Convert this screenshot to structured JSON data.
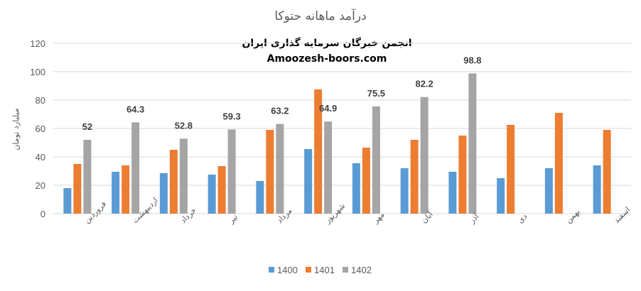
{
  "chart_data": {
    "type": "bar",
    "title": "درآمد ماهانه حتوکا",
    "watermark": [
      "انجمن خبرگان سرمایه گذاری ایران",
      "Amoozesh-boors.com"
    ],
    "xlabel": "",
    "ylabel": "میلیارد تومان",
    "ylim": [
      0,
      120
    ],
    "yticks": [
      0,
      20,
      40,
      60,
      80,
      100,
      120
    ],
    "grid": true,
    "legend_position": "bottom",
    "categories": [
      "فروردین",
      "اردیبهشت",
      "خرداد",
      "تیر",
      "مرداد",
      "شهریور",
      "مهر",
      "آبان",
      "آذر",
      "دی",
      "بهمن",
      "اسفند"
    ],
    "series": [
      {
        "name": "1400",
        "color": "#5b9bd5",
        "values": [
          18,
          29.5,
          28.5,
          27.5,
          23,
          45.5,
          35.5,
          32,
          29.5,
          25,
          32,
          34
        ]
      },
      {
        "name": "1401",
        "color": "#ed7d31",
        "values": [
          35,
          34,
          45,
          33.5,
          59,
          87.5,
          46.5,
          52,
          55,
          62.5,
          71,
          59
        ]
      },
      {
        "name": "1402",
        "color": "#a5a5a5",
        "values": [
          52,
          64.3,
          52.8,
          59.3,
          63.2,
          64.9,
          75.5,
          82.2,
          98.8,
          null,
          null,
          null
        ]
      }
    ],
    "data_labels_series": "1402"
  }
}
